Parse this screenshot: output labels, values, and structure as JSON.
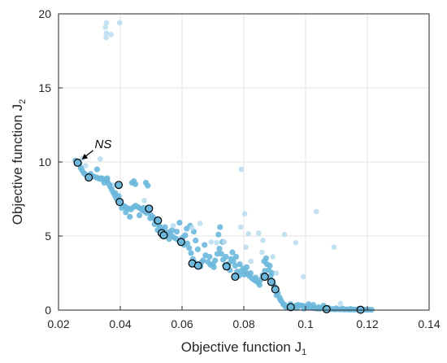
{
  "chart_data": {
    "type": "scatter",
    "xlabel": "Objective function J",
    "xlabel_subscript": "1",
    "ylabel": "Objective function J",
    "ylabel_subscript": "2",
    "xlim": [
      0.02,
      0.14
    ],
    "ylim": [
      0,
      20
    ],
    "xticks": [
      "0.02",
      "0.04",
      "0.06",
      "0.08",
      "0.1",
      "0.12",
      "0.14"
    ],
    "yticks": [
      "0",
      "5",
      "10",
      "15",
      "20"
    ],
    "grid": true,
    "colors": {
      "points": "#6cb8dc",
      "points_faint": "#b9dcee",
      "marked": "#000000"
    },
    "annotation": {
      "text": "NS",
      "x": 0.0262,
      "y": 9.95
    },
    "series": [
      {
        "points": [
          [
            0.0255,
            10.1
          ],
          [
            0.0262,
            10.0
          ],
          [
            0.0268,
            9.9
          ],
          [
            0.0272,
            9.6
          ],
          [
            0.0276,
            9.45
          ],
          [
            0.0282,
            9.25
          ],
          [
            0.0287,
            9.15
          ],
          [
            0.0293,
            9.05
          ],
          [
            0.0298,
            9.1
          ],
          [
            0.0304,
            9.2
          ],
          [
            0.031,
            9.05
          ],
          [
            0.0316,
            9.0
          ],
          [
            0.0323,
            8.95
          ],
          [
            0.0329,
            8.9
          ],
          [
            0.0335,
            8.85
          ],
          [
            0.034,
            8.9
          ],
          [
            0.0346,
            8.8
          ],
          [
            0.0352,
            8.85
          ],
          [
            0.0357,
            8.75
          ],
          [
            0.0362,
            8.55
          ],
          [
            0.0367,
            8.35
          ],
          [
            0.0372,
            8.15
          ],
          [
            0.0377,
            7.95
          ],
          [
            0.0382,
            7.75
          ],
          [
            0.0387,
            7.55
          ],
          [
            0.0392,
            7.4
          ],
          [
            0.0397,
            7.25
          ],
          [
            0.0402,
            7.15
          ],
          [
            0.0408,
            7.05
          ],
          [
            0.0414,
            7.0
          ],
          [
            0.0421,
            6.9
          ],
          [
            0.0428,
            6.85
          ],
          [
            0.0435,
            6.8
          ],
          [
            0.0443,
            6.95
          ],
          [
            0.045,
            7.05
          ],
          [
            0.0458,
            6.95
          ],
          [
            0.0465,
            6.85
          ],
          [
            0.0472,
            6.75
          ],
          [
            0.0479,
            6.65
          ],
          [
            0.0486,
            6.55
          ],
          [
            0.0493,
            6.7
          ],
          [
            0.05,
            6.4
          ],
          [
            0.0507,
            6.25
          ],
          [
            0.0513,
            6.1
          ],
          [
            0.0519,
            5.95
          ],
          [
            0.0524,
            5.75
          ],
          [
            0.053,
            5.6
          ],
          [
            0.0536,
            5.45
          ],
          [
            0.0542,
            5.25
          ],
          [
            0.0548,
            5.1
          ],
          [
            0.0555,
            5.25
          ],
          [
            0.0562,
            5.15
          ],
          [
            0.057,
            4.95
          ],
          [
            0.0578,
            4.85
          ],
          [
            0.0586,
            4.75
          ],
          [
            0.0594,
            4.6
          ],
          [
            0.0602,
            4.9
          ],
          [
            0.061,
            5.05
          ],
          [
            0.0617,
            4.5
          ],
          [
            0.0623,
            4.2
          ],
          [
            0.0629,
            3.85
          ],
          [
            0.0635,
            3.45
          ],
          [
            0.0641,
            3.2
          ],
          [
            0.0647,
            3.05
          ],
          [
            0.0653,
            2.95
          ],
          [
            0.066,
            2.95
          ],
          [
            0.0668,
            3.35
          ],
          [
            0.0676,
            3.7
          ],
          [
            0.0684,
            3.25
          ],
          [
            0.0692,
            3.05
          ],
          [
            0.07,
            3.1
          ],
          [
            0.0707,
            3.35
          ],
          [
            0.0714,
            3.8
          ],
          [
            0.0721,
            4.15
          ],
          [
            0.0727,
            3.8
          ],
          [
            0.0733,
            3.4
          ],
          [
            0.0739,
            3.0
          ],
          [
            0.0745,
            2.95
          ],
          [
            0.0752,
            3.15
          ],
          [
            0.0759,
            3.45
          ],
          [
            0.0766,
            3.3
          ],
          [
            0.0772,
            3.0
          ],
          [
            0.0778,
            2.6
          ],
          [
            0.0784,
            2.3
          ],
          [
            0.079,
            2.6
          ],
          [
            0.0797,
            2.8
          ],
          [
            0.0804,
            2.65
          ],
          [
            0.0811,
            2.45
          ],
          [
            0.0818,
            2.3
          ],
          [
            0.0826,
            2.15
          ],
          [
            0.0833,
            2.05
          ],
          [
            0.084,
            1.95
          ],
          [
            0.0847,
            1.85
          ],
          [
            0.0854,
            2.05
          ],
          [
            0.0861,
            2.35
          ],
          [
            0.0868,
            2.65
          ],
          [
            0.0875,
            3.1
          ],
          [
            0.0881,
            2.7
          ],
          [
            0.0887,
            2.3
          ],
          [
            0.0893,
            1.95
          ],
          [
            0.0898,
            1.65
          ],
          [
            0.0904,
            1.4
          ],
          [
            0.091,
            1.15
          ],
          [
            0.0916,
            0.85
          ],
          [
            0.0922,
            0.6
          ],
          [
            0.0928,
            0.4
          ],
          [
            0.0934,
            0.25
          ],
          [
            0.094,
            0.18
          ],
          [
            0.0947,
            0.15
          ],
          [
            0.0954,
            0.12
          ],
          [
            0.0961,
            0.2
          ],
          [
            0.0968,
            0.3
          ],
          [
            0.0975,
            0.35
          ],
          [
            0.0982,
            0.32
          ],
          [
            0.099,
            0.3
          ],
          [
            0.0998,
            0.25
          ],
          [
            0.1006,
            0.2
          ],
          [
            0.1014,
            0.18
          ],
          [
            0.1022,
            0.15
          ],
          [
            0.103,
            0.12
          ],
          [
            0.1038,
            0.1
          ],
          [
            0.1046,
            0.09
          ],
          [
            0.1054,
            0.15
          ],
          [
            0.1062,
            0.1
          ],
          [
            0.107,
            0.08
          ],
          [
            0.1078,
            0.06
          ],
          [
            0.1086,
            0.07
          ],
          [
            0.1094,
            0.05
          ],
          [
            0.1102,
            0.06
          ],
          [
            0.111,
            0.05
          ],
          [
            0.1118,
            0.05
          ],
          [
            0.1126,
            0.04
          ],
          [
            0.1134,
            0.05
          ],
          [
            0.1142,
            0.03
          ],
          [
            0.115,
            0.04
          ],
          [
            0.1158,
            0.03
          ],
          [
            0.1166,
            0.04
          ],
          [
            0.1174,
            0.03
          ],
          [
            0.1182,
            0.02
          ],
          [
            0.119,
            0.03
          ],
          [
            0.1198,
            0.02
          ],
          [
            0.1206,
            0.02
          ],
          [
            0.1214,
            0.02
          ],
          [
            0.0325,
            9.5
          ],
          [
            0.0338,
            8.9
          ],
          [
            0.0348,
            8.6
          ],
          [
            0.0358,
            8.9
          ],
          [
            0.0371,
            8.4
          ],
          [
            0.0384,
            7.9
          ],
          [
            0.0395,
            7.7
          ],
          [
            0.0405,
            6.9
          ],
          [
            0.0418,
            6.6
          ],
          [
            0.0431,
            6.3
          ],
          [
            0.0444,
            8.7
          ],
          [
            0.0438,
            8.6
          ],
          [
            0.0449,
            8.5
          ],
          [
            0.0462,
            6.4
          ],
          [
            0.0476,
            6.9
          ],
          [
            0.0483,
            8.6
          ],
          [
            0.0489,
            8.4
          ],
          [
            0.0497,
            6.2
          ],
          [
            0.0511,
            5.8
          ],
          [
            0.0521,
            5.4
          ],
          [
            0.0535,
            5.0
          ],
          [
            0.0545,
            5.6
          ],
          [
            0.0558,
            4.8
          ],
          [
            0.0568,
            5.4
          ],
          [
            0.0583,
            5.3
          ],
          [
            0.0592,
            5.9
          ],
          [
            0.0607,
            4.4
          ],
          [
            0.0615,
            5.5
          ],
          [
            0.0626,
            5.7
          ],
          [
            0.0638,
            5.3
          ],
          [
            0.0644,
            4.7
          ],
          [
            0.0651,
            4.1
          ],
          [
            0.0662,
            3.2
          ],
          [
            0.0673,
            4.4
          ],
          [
            0.0689,
            3.6
          ],
          [
            0.0703,
            2.9
          ],
          [
            0.0718,
            5.1
          ],
          [
            0.0723,
            5.6
          ],
          [
            0.0731,
            4.6
          ],
          [
            0.0742,
            3.6
          ],
          [
            0.0755,
            2.7
          ],
          [
            0.0763,
            3.9
          ],
          [
            0.0775,
            3.6
          ],
          [
            0.0787,
            3.1
          ],
          [
            0.0801,
            2.4
          ],
          [
            0.0809,
            2.9
          ],
          [
            0.0822,
            2.5
          ],
          [
            0.0838,
            2.2
          ],
          [
            0.0851,
            1.7
          ],
          [
            0.0866,
            3.3
          ],
          [
            0.0872,
            3.5
          ],
          [
            0.0884,
            3.0
          ],
          [
            0.0891,
            2.5
          ],
          [
            0.0906,
            1.0
          ],
          [
            0.0918,
            0.7
          ],
          [
            0.0932,
            0.35
          ],
          [
            0.0951,
            0.4
          ],
          [
            0.0973,
            0.15
          ],
          [
            0.0995,
            0.1
          ],
          [
            0.101,
            0.4
          ],
          [
            0.1025,
            0.35
          ],
          [
            0.1042,
            0.2
          ],
          [
            0.1058,
            0.3
          ],
          [
            0.1074,
            0.15
          ],
          [
            0.1099,
            0.12
          ],
          [
            0.112,
            0.1
          ],
          [
            0.1145,
            0.08
          ],
          [
            0.1172,
            0.07
          ]
        ]
      },
      {
        "points": [
          [
            0.0355,
            19.4
          ],
          [
            0.0352,
            19.1
          ],
          [
            0.0355,
            18.7
          ],
          [
            0.0354,
            18.4
          ],
          [
            0.037,
            18.6
          ],
          [
            0.0398,
            19.4
          ],
          [
            0.0278,
            10.25
          ],
          [
            0.0288,
            9.75
          ],
          [
            0.0335,
            10.2
          ],
          [
            0.0382,
            8.45
          ],
          [
            0.0478,
            7.4
          ],
          [
            0.0571,
            5.7
          ],
          [
            0.0632,
            5.55
          ],
          [
            0.0658,
            5.85
          ],
          [
            0.0694,
            4.6
          ],
          [
            0.0712,
            4.55
          ],
          [
            0.0737,
            4.6
          ],
          [
            0.079,
            5.6
          ],
          [
            0.0792,
            9.5
          ],
          [
            0.0803,
            6.5
          ],
          [
            0.0807,
            4.25
          ],
          [
            0.0815,
            5.15
          ],
          [
            0.0823,
            3.3
          ],
          [
            0.0848,
            5.2
          ],
          [
            0.0862,
            4.7
          ],
          [
            0.0894,
            3.6
          ],
          [
            0.0932,
            5.1
          ],
          [
            0.0968,
            4.55
          ],
          [
            0.0993,
            2.25
          ],
          [
            0.1035,
            6.65
          ],
          [
            0.1092,
            4.25
          ],
          [
            0.1113,
            0.45
          ],
          [
            0.0905,
            2.5
          ],
          [
            0.0859,
            3.9
          ]
        ]
      },
      {
        "points": [
          [
            0.0262,
            9.95
          ],
          [
            0.0298,
            8.95
          ],
          [
            0.0395,
            8.45
          ],
          [
            0.0398,
            7.3
          ],
          [
            0.0493,
            6.85
          ],
          [
            0.0522,
            6.05
          ],
          [
            0.0534,
            5.2
          ],
          [
            0.0541,
            5.05
          ],
          [
            0.0597,
            4.6
          ],
          [
            0.0633,
            3.15
          ],
          [
            0.0652,
            3.0
          ],
          [
            0.0744,
            2.95
          ],
          [
            0.0772,
            2.25
          ],
          [
            0.0868,
            2.25
          ],
          [
            0.0889,
            1.9
          ],
          [
            0.0902,
            1.4
          ],
          [
            0.0952,
            0.2
          ],
          [
            0.1068,
            0.06
          ],
          [
            0.1178,
            0.02
          ]
        ]
      }
    ]
  }
}
